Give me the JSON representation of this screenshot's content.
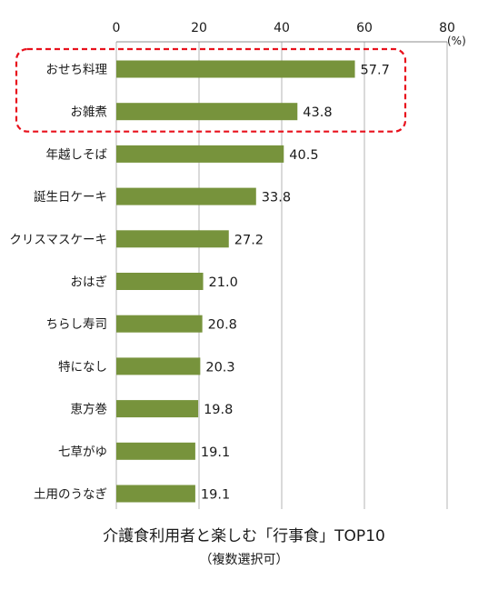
{
  "chart_data": {
    "type": "bar",
    "orientation": "horizontal",
    "title": "介護食利用者と楽しむ「行事食」TOP10",
    "subtitle": "（複数選択可）",
    "unit": "(%)",
    "xlim": [
      0,
      80
    ],
    "ticks": [
      "0",
      "20",
      "40",
      "60",
      "80"
    ],
    "tick_values": [
      0,
      20,
      40,
      60,
      80
    ],
    "categories": [
      "おせち料理",
      "お雑煮",
      "年越しそば",
      "誕生日ケーキ",
      "クリスマスケーキ",
      "おはぎ",
      "ちらし寿司",
      "特になし",
      "恵方巻",
      "七草がゆ",
      "土用のうなぎ"
    ],
    "values": [
      57.7,
      43.8,
      40.5,
      33.8,
      27.2,
      21.0,
      20.8,
      20.3,
      19.8,
      19.1,
      19.1
    ],
    "value_labels": [
      "57.7",
      "43.8",
      "40.5",
      "33.8",
      "27.2",
      "21.0",
      "20.8",
      "20.3",
      "19.8",
      "19.1",
      "19.1"
    ],
    "highlighted": [
      "おせち料理",
      "お雑煮"
    ],
    "bar_color": "#77933c",
    "highlight_color": "#e8111c",
    "gridlines": true,
    "axis_position": "top"
  }
}
